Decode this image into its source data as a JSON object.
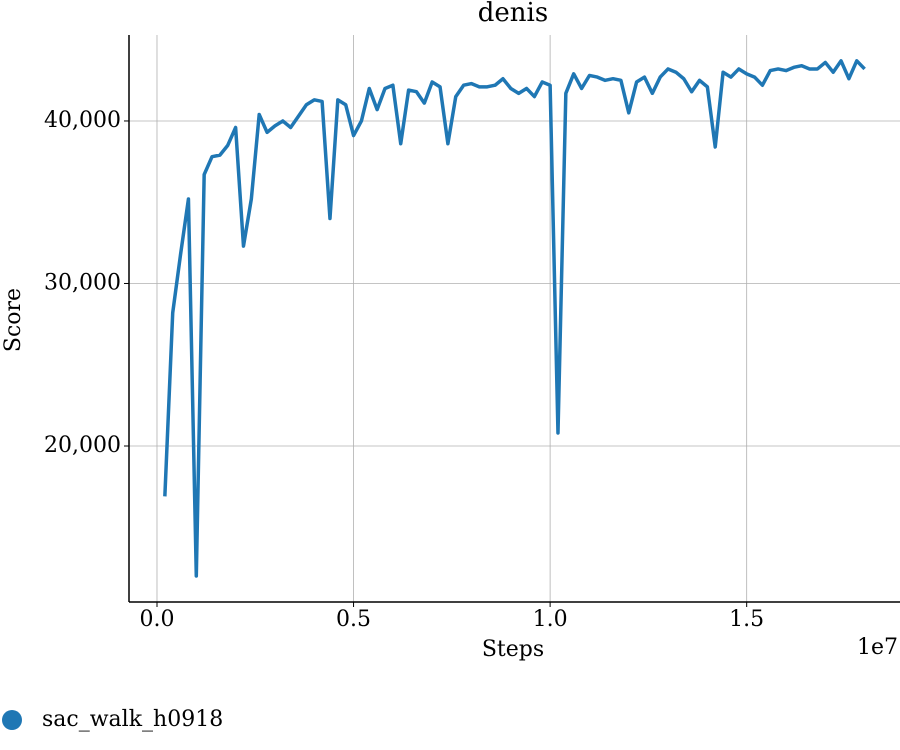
{
  "chart_data": {
    "type": "line",
    "title": "denis",
    "x_label": "Steps",
    "y_label": "Score",
    "x_offset_label": "1e7",
    "x": [
      200000,
      400000,
      600000,
      800000,
      1000000,
      1200000,
      1400000,
      1600000,
      1800000,
      2000000,
      2200000,
      2400000,
      2600000,
      2800000,
      3000000,
      3200000,
      3400000,
      3600000,
      3800000,
      4000000,
      4200000,
      4400000,
      4600000,
      4800000,
      5000000,
      5200000,
      5400000,
      5600000,
      5800000,
      6000000,
      6200000,
      6400000,
      6600000,
      6800000,
      7000000,
      7200000,
      7400000,
      7600000,
      7800000,
      8000000,
      8200000,
      8400000,
      8600000,
      8800000,
      9000000,
      9200000,
      9400000,
      9600000,
      9800000,
      10000000,
      10200000,
      10400000,
      10600000,
      10800000,
      11000000,
      11200000,
      11400000,
      11600000,
      11800000,
      12000000,
      12200000,
      12400000,
      12600000,
      12800000,
      13000000,
      13200000,
      13400000,
      13600000,
      13800000,
      14000000,
      14200000,
      14400000,
      14600000,
      14800000,
      15000000,
      15200000,
      15400000,
      15600000,
      15800000,
      16000000,
      16200000,
      16400000,
      16600000,
      16800000,
      17000000,
      17200000,
      17400000,
      17600000,
      17800000,
      18000000
    ],
    "series": [
      {
        "name": "sac_walk_h0918",
        "color": "#1f77b4",
        "values": [
          16900,
          28200,
          31800,
          35200,
          12000,
          36700,
          37800,
          37900,
          38500,
          39600,
          32300,
          35200,
          40400,
          39300,
          39700,
          40000,
          39600,
          40300,
          41000,
          41300,
          41200,
          34000,
          41300,
          41000,
          39100,
          40000,
          42000,
          40700,
          42000,
          42200,
          38600,
          41900,
          41800,
          41100,
          42400,
          42100,
          38600,
          41500,
          42200,
          42300,
          42100,
          42100,
          42200,
          42600,
          42000,
          41700,
          42000,
          41500,
          42400,
          42200,
          20800,
          41700,
          42900,
          42000,
          42800,
          42700,
          42500,
          42600,
          42500,
          40500,
          42400,
          42700,
          41700,
          42700,
          43200,
          43000,
          42600,
          41800,
          42500,
          42100,
          38400,
          43000,
          42700,
          43200,
          42900,
          42700,
          42200,
          43100,
          43200,
          43100,
          43300,
          43400,
          43200,
          43200,
          43600,
          43000,
          43700,
          42600,
          43700,
          43200
        ]
      }
    ],
    "xlim": [
      -712000,
      18900000
    ],
    "ylim": [
      10400,
      45290
    ],
    "xticks": [
      {
        "value": 0,
        "label": "0.0"
      },
      {
        "value": 5000000,
        "label": "0.5"
      },
      {
        "value": 10000000,
        "label": "1.0"
      },
      {
        "value": 15000000,
        "label": "1.5"
      }
    ],
    "yticks": [
      {
        "value": 20000,
        "label": "20,000"
      },
      {
        "value": 30000,
        "label": "30,000"
      },
      {
        "value": 40000,
        "label": "40,000"
      }
    ],
    "grid": true,
    "legend": "bottom-left"
  }
}
